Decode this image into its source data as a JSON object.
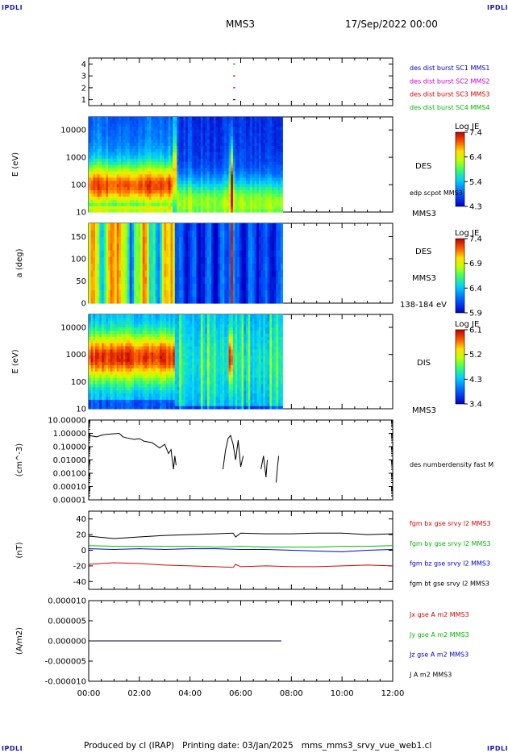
{
  "header": {
    "corner_label": "IPDLI",
    "spacecraft": "MMS3",
    "datetime": "17/Sep/2022 00:00"
  },
  "footer": {
    "text": "Produced by cl (IRAP)   Printing date: 03/Jan/2025   mms_mms3_srvy_vue_web1.cl"
  },
  "time_axis": {
    "ticks": [
      "00:00",
      "02:00",
      "04:00",
      "06:00",
      "08:00",
      "10:00",
      "12:00"
    ],
    "range_hours": [
      0,
      12
    ],
    "data_end_hours": 7.65
  },
  "chart_data": [
    {
      "type": "line",
      "id": "burst-availability",
      "y_ticks": [
        "1",
        "2",
        "3",
        "4"
      ],
      "ylim": [
        0.5,
        4.5
      ],
      "legend": [
        {
          "name": "des dist burst SC1 MMS1",
          "color": "#0000cc"
        },
        {
          "name": "des dist burst SC2 MMS2",
          "color": "#cc00cc"
        },
        {
          "name": "des dist burst SC3 MMS3",
          "color": "#dd0000"
        },
        {
          "name": "des dist burst SC4 MMS4",
          "color": "#00bb00"
        }
      ],
      "markers": [
        {
          "level": 1,
          "x_start": 5.6,
          "x_end": 5.95,
          "color": "#0000cc"
        },
        {
          "level": 2,
          "x_start": 5.6,
          "x_end": 5.95,
          "color": "#cc00cc"
        },
        {
          "level": 3,
          "x_start": 5.6,
          "x_end": 5.95,
          "color": "#dd0000"
        },
        {
          "level": 4,
          "x_start": 5.6,
          "x_end": 5.95,
          "color": "#00bb00"
        }
      ]
    },
    {
      "type": "heatmap",
      "id": "des-energy-spectrogram",
      "ylabel": "E (eV)",
      "y_ticks": [
        "10",
        "100",
        "1000",
        "10000"
      ],
      "scale": "log",
      "ylim": [
        10,
        30000
      ],
      "right_labels": [
        "DES",
        "edp scpot MMS3",
        "MMS3"
      ],
      "colorbar": {
        "title": "Log JE",
        "ticks": [
          "7.4",
          "6.4",
          "5.4",
          "4.3"
        ],
        "min": 4.3,
        "max": 7.4
      }
    },
    {
      "type": "heatmap",
      "id": "des-pitch-angle",
      "ylabel": "a (deg)",
      "y_ticks": [
        "0",
        "50",
        "100",
        "150"
      ],
      "ylim": [
        0,
        180
      ],
      "right_labels": [
        "DES",
        "MMS3",
        "138-184 eV"
      ],
      "colorbar": {
        "title": "Log JE",
        "ticks": [
          "7.4",
          "6.9",
          "6.4",
          "5.9"
        ],
        "min": 5.9,
        "max": 7.4
      }
    },
    {
      "type": "heatmap",
      "id": "dis-energy-spectrogram",
      "ylabel": "E (eV)",
      "y_ticks": [
        "10",
        "100",
        "1000",
        "10000"
      ],
      "scale": "log",
      "ylim": [
        10,
        30000
      ],
      "right_labels": [
        "DIS",
        "MMS3"
      ],
      "colorbar": {
        "title": "Log JE",
        "ticks": [
          "6.1",
          "5.2",
          "4.3",
          "3.4"
        ],
        "min": 3.4,
        "max": 6.1
      }
    },
    {
      "type": "line",
      "id": "des-number-density",
      "ylabel": "(cm^-3)",
      "y_ticks": [
        "10.00000",
        "1.00000",
        "0.10000",
        "0.01000",
        "0.00100",
        "0.00010",
        "0.00001"
      ],
      "scale": "log",
      "ylim": [
        1e-05,
        10
      ],
      "series": [
        {
          "name": "des numberdensity fast M",
          "color": "#000000",
          "segments": [
            {
              "x": [
                0.0,
                0.3,
                0.6,
                0.9,
                1.2,
                1.35,
                1.5,
                1.8,
                2.0,
                2.2,
                2.5,
                2.8,
                3.0,
                3.15,
                3.25,
                3.3
              ],
              "y": [
                0.7,
                0.55,
                0.8,
                0.9,
                1.0,
                0.55,
                0.45,
                0.35,
                0.4,
                0.25,
                0.2,
                0.08,
                0.15,
                0.03,
                0.06,
                0.01
              ]
            },
            {
              "x": [
                3.3,
                3.35,
                3.4,
                3.45
              ],
              "y": [
                0.01,
                0.002,
                0.02,
                0.004
              ]
            },
            {
              "x": [
                5.3,
                5.4,
                5.5,
                5.6,
                5.7,
                5.8,
                5.9,
                6.0,
                6.1
              ],
              "y": [
                0.002,
                0.05,
                0.4,
                0.7,
                0.15,
                0.01,
                0.3,
                0.003,
                0.02
              ]
            },
            {
              "x": [
                6.8,
                6.9,
                7.0,
                7.05
              ],
              "y": [
                0.002,
                0.02,
                0.0005,
                0.01
              ]
            },
            {
              "x": [
                7.4,
                7.45,
                7.5
              ],
              "y": [
                0.0002,
                0.003,
                0.02
              ]
            }
          ]
        }
      ]
    },
    {
      "type": "line",
      "id": "fgm-magnetic-field",
      "ylabel": "(nT)",
      "y_ticks": [
        "40",
        "20",
        "0",
        "-20",
        "-40"
      ],
      "ylim": [
        -50,
        50
      ],
      "series": [
        {
          "name": "fgm bx gse srvy l2 MMS3",
          "color": "#dd0000",
          "x": [
            0,
            1,
            2,
            3,
            4,
            5,
            5.7,
            5.8,
            6,
            7,
            8,
            9,
            10,
            11,
            12
          ],
          "y": [
            -18,
            -16,
            -17,
            -19,
            -20,
            -21,
            -22,
            -18,
            -21,
            -20,
            -21,
            -21,
            -20,
            -19,
            -20
          ]
        },
        {
          "name": "fgm by gse srvy l2 MMS3",
          "color": "#00bb00",
          "x": [
            0,
            1,
            2,
            3,
            4,
            5,
            6,
            7,
            8,
            9,
            10,
            11,
            12
          ],
          "y": [
            6,
            5,
            5,
            5,
            5,
            4,
            5,
            4,
            4,
            4,
            5,
            5,
            6
          ]
        },
        {
          "name": "fgm bz gse srvy l2 MMS3",
          "color": "#0000cc",
          "x": [
            0,
            1,
            2,
            3,
            4,
            5,
            6,
            7,
            8,
            9,
            10,
            11,
            12
          ],
          "y": [
            2,
            1,
            2,
            1,
            2,
            2,
            1,
            1,
            0,
            -1,
            -2,
            0,
            1
          ]
        },
        {
          "name": "fgm bt gse srvy l2 MMS3",
          "color": "#000000",
          "x": [
            0,
            1,
            2,
            3,
            4,
            5,
            5.7,
            5.8,
            6,
            7,
            8,
            9,
            10,
            11,
            12
          ],
          "y": [
            18,
            15,
            17,
            19,
            20,
            21,
            22,
            17,
            22,
            21,
            21,
            22,
            22,
            20,
            21
          ]
        }
      ]
    },
    {
      "type": "line",
      "id": "current-density",
      "ylabel": "(A/m2)",
      "y_ticks": [
        "0.000010",
        "0.000005",
        "0.000000",
        "-0.000005",
        "-0.000010"
      ],
      "ylim": [
        -1e-05,
        1e-05
      ],
      "series": [
        {
          "name": "Jx gse A m2 MMS3",
          "color": "#dd0000",
          "x": [
            0,
            7.6
          ],
          "y": [
            0,
            0
          ]
        },
        {
          "name": "Jy gse A m2 MMS3",
          "color": "#00bb00",
          "x": [
            0,
            7.6
          ],
          "y": [
            0,
            0
          ]
        },
        {
          "name": "Jz gse A m2 MMS3",
          "color": "#0000cc",
          "x": [
            0,
            7.6
          ],
          "y": [
            0,
            0
          ]
        },
        {
          "name": "J A m2 MMS3",
          "color": "#000000",
          "x": [
            0,
            7.6
          ],
          "y": [
            0,
            0
          ]
        }
      ]
    }
  ]
}
